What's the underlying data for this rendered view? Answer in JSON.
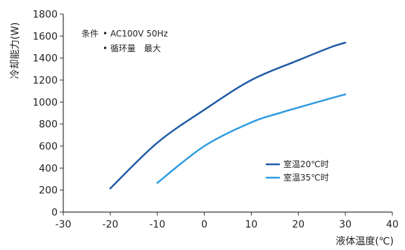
{
  "chart_data": {
    "type": "line",
    "xlabel": "液体温度(℃)",
    "ylabel": "冷却能力(W)",
    "xlim": [
      -30,
      40
    ],
    "ylim": [
      0,
      1800
    ],
    "xticks": [
      "-30",
      "-20",
      "-10",
      "0",
      "10",
      "20",
      "30",
      "40"
    ],
    "yticks": [
      "0",
      "200",
      "400",
      "600",
      "800",
      "1000",
      "1200",
      "1400",
      "1600",
      "1800"
    ],
    "grid": false,
    "legend_position": "lower-right",
    "annotation": {
      "label": "条件",
      "lines": [
        "• AC100V 50Hz",
        "• 循环量　最大"
      ]
    },
    "series": [
      {
        "name": "室温20℃时",
        "color": "#1f5aa6",
        "x": [
          -20,
          -10,
          0,
          10,
          20,
          27,
          30
        ],
        "y": [
          215,
          630,
          930,
          1200,
          1380,
          1500,
          1540
        ]
      },
      {
        "name": "室温35℃时",
        "color": "#2d9be0",
        "x": [
          -10,
          0,
          10,
          16,
          20,
          27,
          30
        ],
        "y": [
          265,
          600,
          815,
          900,
          950,
          1035,
          1070
        ]
      }
    ]
  }
}
